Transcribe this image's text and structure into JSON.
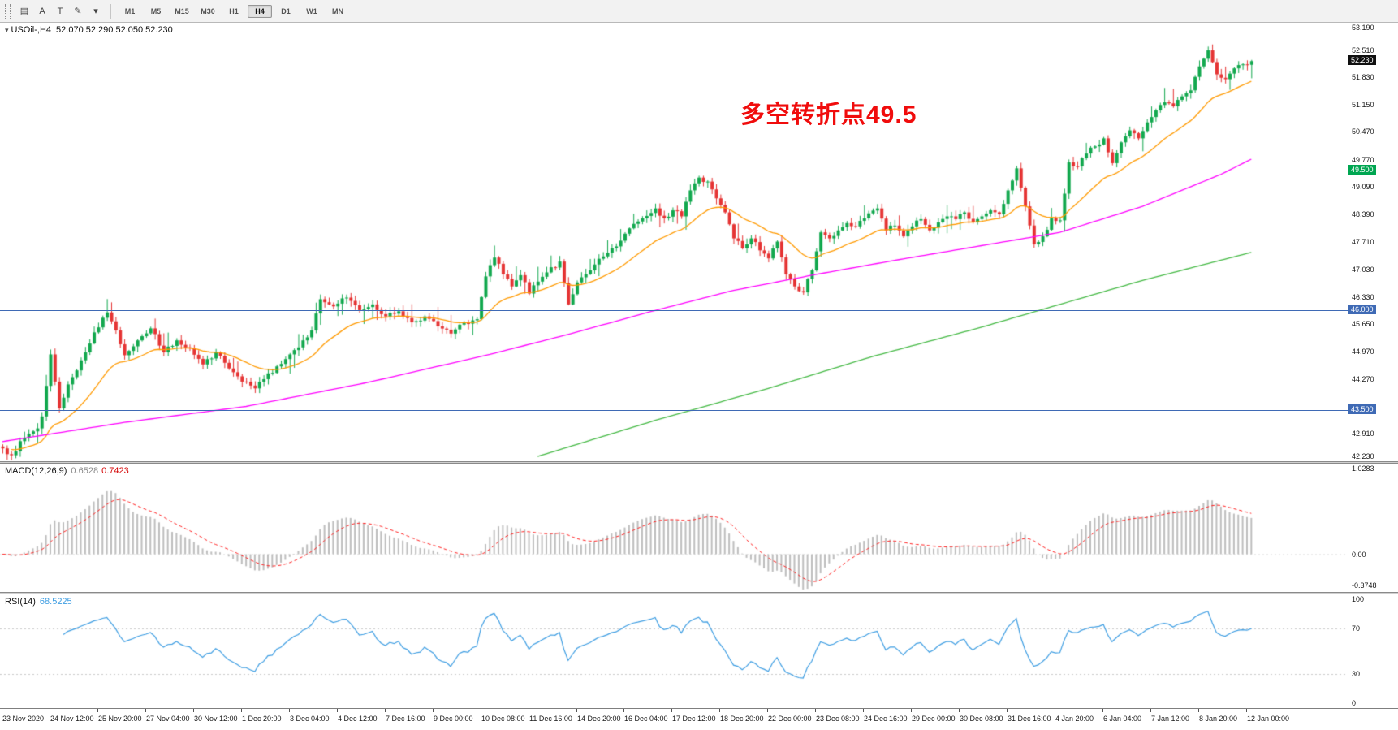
{
  "toolbar": {
    "tools": [
      {
        "name": "chart-type-icon",
        "glyph": "▤"
      },
      {
        "name": "crosshair-icon",
        "glyph": "A"
      },
      {
        "name": "text-tool-icon",
        "glyph": "T"
      },
      {
        "name": "draw-tool-icon",
        "glyph": "✎"
      },
      {
        "name": "dropdown-caret-icon",
        "glyph": "▾"
      }
    ],
    "timeframes": [
      "M1",
      "M5",
      "M15",
      "M30",
      "H1",
      "H4",
      "D1",
      "W1",
      "MN"
    ],
    "active_timeframe": "H4"
  },
  "symbol": {
    "title": "USOil-,H4",
    "ohlc": "52.070 52.290 52.050 52.230"
  },
  "annotation": {
    "text": "多空转折点49.5",
    "color": "#f00c0c"
  },
  "current_price": {
    "t": "52.230",
    "v": 52.23,
    "bg": "#101010"
  },
  "price_axis": {
    "labels": [
      {
        "t": "53.190",
        "v": 53.19
      },
      {
        "t": "52.510",
        "v": 52.51
      },
      {
        "t": "51.830",
        "v": 51.83
      },
      {
        "t": "51.150",
        "v": 51.15
      },
      {
        "t": "50.470",
        "v": 50.47
      },
      {
        "t": "49.770",
        "v": 49.77
      },
      {
        "t": "49.090",
        "v": 49.09
      },
      {
        "t": "48.390",
        "v": 48.39
      },
      {
        "t": "47.710",
        "v": 47.71
      },
      {
        "t": "47.030",
        "v": 47.03
      },
      {
        "t": "46.330",
        "v": 46.33
      },
      {
        "t": "45.650",
        "v": 45.65
      },
      {
        "t": "44.970",
        "v": 44.97
      },
      {
        "t": "44.270",
        "v": 44.27
      },
      {
        "t": "43.590",
        "v": 43.59
      },
      {
        "t": "42.910",
        "v": 42.91
      },
      {
        "t": "42.230",
        "v": 42.23
      }
    ]
  },
  "hlines": [
    {
      "v": 52.2,
      "color": "#6fa8dc",
      "tag": null
    },
    {
      "v": 49.5,
      "color": "#00a651",
      "tag": "49.500"
    },
    {
      "v": 46.0,
      "color": "#3f6ab5",
      "tag": "46.000"
    },
    {
      "v": 43.5,
      "color": "#3f6ab5",
      "tag": "43.500"
    }
  ],
  "macd": {
    "name": "MACD(12,26,9)",
    "value_main": "0.6528",
    "value_signal": "0.7423",
    "axis": [
      {
        "t": "1.0283",
        "v": 1.0283
      },
      {
        "t": "0.00",
        "v": 0
      },
      {
        "t": "-0.3748",
        "v": -0.3748
      }
    ],
    "range": [
      -0.45,
      1.08
    ]
  },
  "rsi": {
    "name": "RSI(14)",
    "value": "68.5225",
    "axis": [
      {
        "t": "100",
        "v": 100
      },
      {
        "t": "70",
        "v": 70
      },
      {
        "t": "30",
        "v": 30
      },
      {
        "t": "0",
        "v": 0
      }
    ],
    "levels": [
      70,
      30
    ]
  },
  "chart_data": {
    "type": "candlestick",
    "symbol": "USOil",
    "timeframe": "H4",
    "title": "USOil-,H4 52.070 52.290 52.050 52.230",
    "price_range": [
      42.23,
      53.19
    ],
    "bar_count": 288,
    "x_labels": [
      "23 Nov 2020",
      "24 Nov 12:00",
      "25 Nov 20:00",
      "27 Nov 04:00",
      "30 Nov 12:00",
      "1 Dec 20:00",
      "3 Dec 04:00",
      "4 Dec 12:00",
      "7 Dec 16:00",
      "9 Dec 00:00",
      "10 Dec 08:00",
      "11 Dec 16:00",
      "14 Dec 20:00",
      "16 Dec 04:00",
      "17 Dec 12:00",
      "18 Dec 20:00",
      "22 Dec 00:00",
      "23 Dec 08:00",
      "24 Dec 16:00",
      "29 Dec 00:00",
      "30 Dec 08:00",
      "31 Dec 16:00",
      "4 Jan 20:00",
      "6 Jan 04:00",
      "7 Jan 12:00",
      "8 Jan 20:00",
      "12 Jan 00:00"
    ],
    "close_anchors": [
      [
        0,
        42.55
      ],
      [
        2,
        42.38
      ],
      [
        5,
        42.82
      ],
      [
        8,
        43.05
      ],
      [
        9,
        43.35
      ],
      [
        11,
        44.9
      ],
      [
        13,
        43.55
      ],
      [
        15,
        44.15
      ],
      [
        17,
        44.5
      ],
      [
        19,
        44.95
      ],
      [
        21,
        45.45
      ],
      [
        24,
        45.95
      ],
      [
        26,
        45.5
      ],
      [
        28,
        44.88
      ],
      [
        31,
        45.25
      ],
      [
        34,
        45.55
      ],
      [
        37,
        44.95
      ],
      [
        40,
        45.25
      ],
      [
        43,
        45.05
      ],
      [
        46,
        44.65
      ],
      [
        49,
        44.95
      ],
      [
        52,
        44.55
      ],
      [
        55,
        44.22
      ],
      [
        58,
        44.05
      ],
      [
        60,
        44.28
      ],
      [
        63,
        44.6
      ],
      [
        66,
        44.9
      ],
      [
        69,
        45.25
      ],
      [
        71,
        45.5
      ],
      [
        73,
        46.28
      ],
      [
        76,
        46.1
      ],
      [
        79,
        46.32
      ],
      [
        82,
        46.0
      ],
      [
        85,
        46.15
      ],
      [
        88,
        45.85
      ],
      [
        91,
        45.98
      ],
      [
        94,
        45.7
      ],
      [
        97,
        45.85
      ],
      [
        100,
        45.6
      ],
      [
        103,
        45.42
      ],
      [
        106,
        45.68
      ],
      [
        109,
        45.78
      ],
      [
        111,
        46.85
      ],
      [
        113,
        47.32
      ],
      [
        115,
        46.9
      ],
      [
        117,
        46.6
      ],
      [
        119,
        46.88
      ],
      [
        121,
        46.42
      ],
      [
        123,
        46.72
      ],
      [
        125,
        46.95
      ],
      [
        128,
        47.22
      ],
      [
        130,
        46.15
      ],
      [
        132,
        46.7
      ],
      [
        135,
        47.0
      ],
      [
        138,
        47.35
      ],
      [
        141,
        47.6
      ],
      [
        144,
        48.05
      ],
      [
        147,
        48.3
      ],
      [
        150,
        48.55
      ],
      [
        152,
        48.3
      ],
      [
        154,
        48.5
      ],
      [
        156,
        48.35
      ],
      [
        158,
        49.0
      ],
      [
        160,
        49.32
      ],
      [
        162,
        49.22
      ],
      [
        164,
        48.8
      ],
      [
        166,
        48.45
      ],
      [
        168,
        47.8
      ],
      [
        170,
        47.55
      ],
      [
        172,
        47.8
      ],
      [
        174,
        47.5
      ],
      [
        176,
        47.3
      ],
      [
        178,
        47.72
      ],
      [
        180,
        46.9
      ],
      [
        182,
        46.6
      ],
      [
        184,
        46.45
      ],
      [
        186,
        47.0
      ],
      [
        188,
        47.95
      ],
      [
        190,
        47.8
      ],
      [
        192,
        48.0
      ],
      [
        194,
        48.18
      ],
      [
        196,
        48.1
      ],
      [
        198,
        48.3
      ],
      [
        201,
        48.55
      ],
      [
        203,
        48.0
      ],
      [
        205,
        48.12
      ],
      [
        207,
        47.85
      ],
      [
        209,
        48.1
      ],
      [
        211,
        48.28
      ],
      [
        213,
        48.0
      ],
      [
        215,
        48.2
      ],
      [
        217,
        48.35
      ],
      [
        219,
        48.28
      ],
      [
        221,
        48.45
      ],
      [
        223,
        48.2
      ],
      [
        225,
        48.35
      ],
      [
        227,
        48.5
      ],
      [
        229,
        48.4
      ],
      [
        231,
        49.0
      ],
      [
        233,
        49.55
      ],
      [
        235,
        48.6
      ],
      [
        237,
        47.65
      ],
      [
        239,
        47.85
      ],
      [
        241,
        48.3
      ],
      [
        243,
        48.25
      ],
      [
        245,
        49.7
      ],
      [
        247,
        49.6
      ],
      [
        249,
        49.92
      ],
      [
        251,
        50.1
      ],
      [
        253,
        50.3
      ],
      [
        255,
        49.68
      ],
      [
        257,
        50.2
      ],
      [
        259,
        50.5
      ],
      [
        261,
        50.3
      ],
      [
        263,
        50.7
      ],
      [
        265,
        51.0
      ],
      [
        267,
        51.2
      ],
      [
        269,
        51.1
      ],
      [
        271,
        51.35
      ],
      [
        273,
        51.5
      ],
      [
        275,
        52.1
      ],
      [
        277,
        52.5
      ],
      [
        279,
        51.9
      ],
      [
        281,
        51.78
      ],
      [
        283,
        52.05
      ],
      [
        285,
        52.15
      ],
      [
        287,
        52.23
      ]
    ],
    "overlays": {
      "ma_fast": {
        "label": "fast MA",
        "color": "#ff9a00",
        "method": "ema",
        "period": 21
      },
      "ma_mid": {
        "label": "mid MA",
        "color": "#ff00ff",
        "anchors": [
          [
            0,
            42.72
          ],
          [
            28,
            43.2
          ],
          [
            56,
            43.6
          ],
          [
            84,
            44.2
          ],
          [
            112,
            44.9
          ],
          [
            130,
            45.4
          ],
          [
            150,
            46.0
          ],
          [
            168,
            46.5
          ],
          [
            187,
            46.9
          ],
          [
            205,
            47.25
          ],
          [
            224,
            47.6
          ],
          [
            243,
            47.95
          ],
          [
            262,
            48.6
          ],
          [
            280,
            49.4
          ],
          [
            287,
            49.78
          ]
        ]
      },
      "ma_slow": {
        "label": "slow MA",
        "color": "#45b945",
        "anchors": [
          [
            123,
            42.35
          ],
          [
            150,
            43.25
          ],
          [
            176,
            44.05
          ],
          [
            200,
            44.85
          ],
          [
            224,
            45.55
          ],
          [
            243,
            46.15
          ],
          [
            262,
            46.75
          ],
          [
            287,
            47.45
          ]
        ]
      }
    },
    "horizontal_line_prices": [
      52.2,
      49.5,
      46.0,
      43.5
    ],
    "indicators": [
      {
        "name": "MACD",
        "params": "12,26,9",
        "displayed_values": [
          0.6528,
          0.7423
        ],
        "axis_range": [
          -0.3748,
          1.0283
        ]
      },
      {
        "name": "RSI",
        "params": "14",
        "displayed_value": 68.5225,
        "levels": [
          70,
          30
        ],
        "axis_range": [
          0,
          100
        ]
      }
    ],
    "style": {
      "up": "#12a84e",
      "down": "#e53434",
      "hist": "#bdbdbd",
      "signal": "#ff1f1f",
      "rsi_line": "#3d9de2"
    }
  }
}
